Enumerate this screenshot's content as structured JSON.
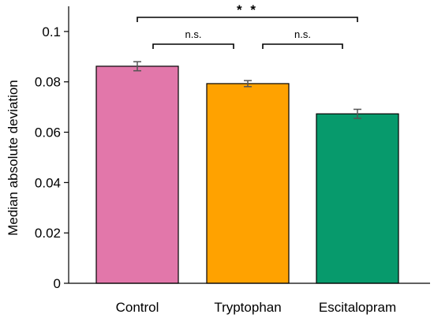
{
  "chart_data": {
    "type": "bar",
    "ylabel": "Median absolute deviation",
    "xlabel": "",
    "ylim": [
      0,
      0.11
    ],
    "yticks": [
      0,
      0.02,
      0.04,
      0.06,
      0.08,
      0.1
    ],
    "ytick_labels": [
      "0",
      "0.02",
      "0.04",
      "0.06",
      "0.08",
      "0.1"
    ],
    "categories": [
      "Control",
      "Tryptophan",
      "Escitalopram"
    ],
    "values": [
      0.0862,
      0.0793,
      0.0673
    ],
    "errors": [
      0.0018,
      0.0012,
      0.0018
    ],
    "colors": [
      "#e277aa",
      "#ffa200",
      "#079a6c"
    ],
    "significance": [
      {
        "from": 0,
        "to": 1,
        "label": "n.s."
      },
      {
        "from": 1,
        "to": 2,
        "label": "n.s."
      },
      {
        "from": 0,
        "to": 2,
        "label": "* *"
      }
    ],
    "grid": false,
    "legend": "none"
  }
}
